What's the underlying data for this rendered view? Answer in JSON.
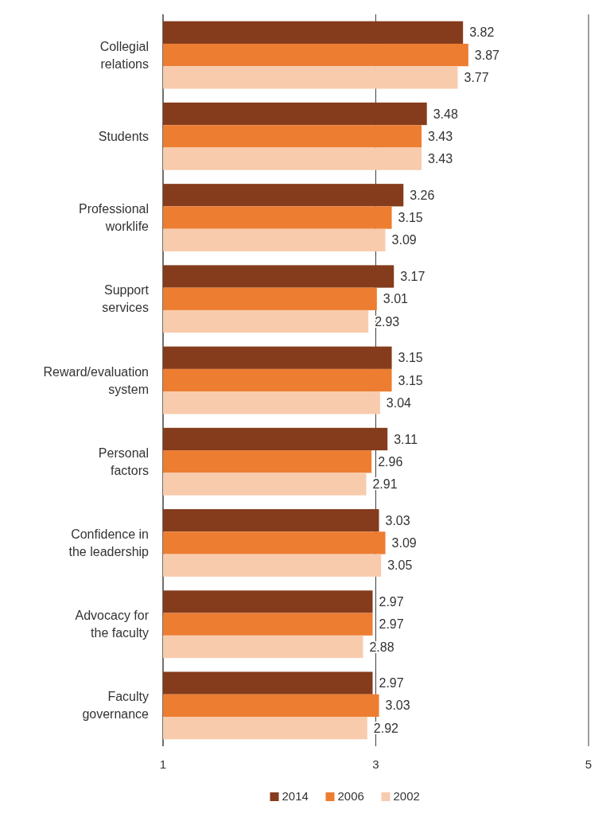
{
  "chart_data": {
    "type": "bar",
    "orientation": "horizontal",
    "categories": [
      "Collegial relations",
      "Students",
      "Professional worklife",
      "Support services",
      "Reward/evaluation system",
      "Personal factors",
      "Confidence in the leadership",
      "Advocacy for the faculty",
      "Faculty governance"
    ],
    "series": [
      {
        "name": "2014",
        "color": "#843c1c",
        "values": [
          3.82,
          3.48,
          3.26,
          3.17,
          3.15,
          3.11,
          3.03,
          2.97,
          2.97
        ]
      },
      {
        "name": "2006",
        "color": "#ed7d31",
        "values": [
          3.87,
          3.43,
          3.15,
          3.01,
          3.15,
          2.96,
          3.09,
          2.97,
          3.03
        ]
      },
      {
        "name": "2002",
        "color": "#f8cbad",
        "values": [
          3.77,
          3.43,
          3.09,
          2.93,
          3.04,
          2.91,
          3.05,
          2.88,
          2.92
        ]
      }
    ],
    "xlim": [
      1,
      5
    ],
    "xticks": [
      1,
      3,
      5
    ],
    "grid": "x",
    "data_labels": true,
    "legend": "bottom"
  }
}
